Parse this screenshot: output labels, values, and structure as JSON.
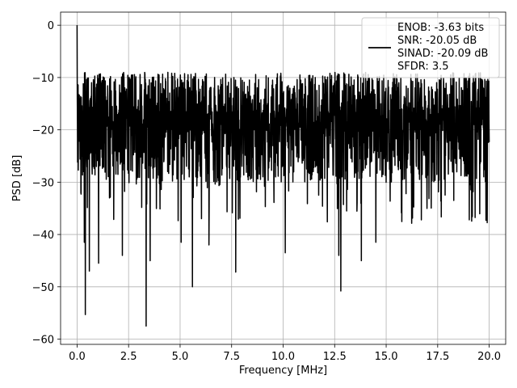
{
  "chart_data": {
    "type": "line",
    "title": "",
    "xlabel": "Frequency [MHz]",
    "ylabel": "PSD [dB]",
    "xlim": [
      -0.8,
      20.8
    ],
    "ylim": [
      -61,
      2.5
    ],
    "grid": true,
    "legend_position": "top-right",
    "xticks": [
      0.0,
      2.5,
      5.0,
      7.5,
      10.0,
      12.5,
      15.0,
      17.5,
      20.0
    ],
    "xtick_labels": [
      "0.0",
      "2.5",
      "5.0",
      "7.5",
      "10.0",
      "12.5",
      "15.0",
      "17.5",
      "20.0"
    ],
    "yticks": [
      0,
      -10,
      -20,
      -30,
      -40,
      -50,
      -60
    ],
    "ytick_labels": [
      "0",
      "−10",
      "−20",
      "−30",
      "−40",
      "−50",
      "−60"
    ],
    "series": [
      {
        "name": "",
        "color": "#000000",
        "x_start": 0.0,
        "x_end": 20.0,
        "num_points": 2048,
        "values_approx": {
          "dc_peak": [
            0.0,
            0.0
          ],
          "typical_max": -9,
          "typical_min": -30,
          "notable_dips": [
            {
              "x": 0.35,
              "y": -41.5
            },
            {
              "x": 0.4,
              "y": -55.3
            },
            {
              "x": 0.6,
              "y": -47
            },
            {
              "x": 1.05,
              "y": -45.5
            },
            {
              "x": 2.2,
              "y": -44
            },
            {
              "x": 3.35,
              "y": -57.5
            },
            {
              "x": 3.55,
              "y": -45
            },
            {
              "x": 5.05,
              "y": -41.5
            },
            {
              "x": 5.6,
              "y": -50
            },
            {
              "x": 6.4,
              "y": -42
            },
            {
              "x": 7.7,
              "y": -47.2
            },
            {
              "x": 10.1,
              "y": -43.5
            },
            {
              "x": 12.8,
              "y": -50.8
            },
            {
              "x": 13.8,
              "y": -45
            },
            {
              "x": 12.7,
              "y": -44
            },
            {
              "x": 14.5,
              "y": -41.5
            }
          ]
        }
      }
    ],
    "legend": {
      "entries": [
        "ENOB: -3.63 bits",
        "SNR: -20.05 dB",
        "SINAD: -20.09 dB",
        "SFDR: 3.5"
      ]
    }
  }
}
